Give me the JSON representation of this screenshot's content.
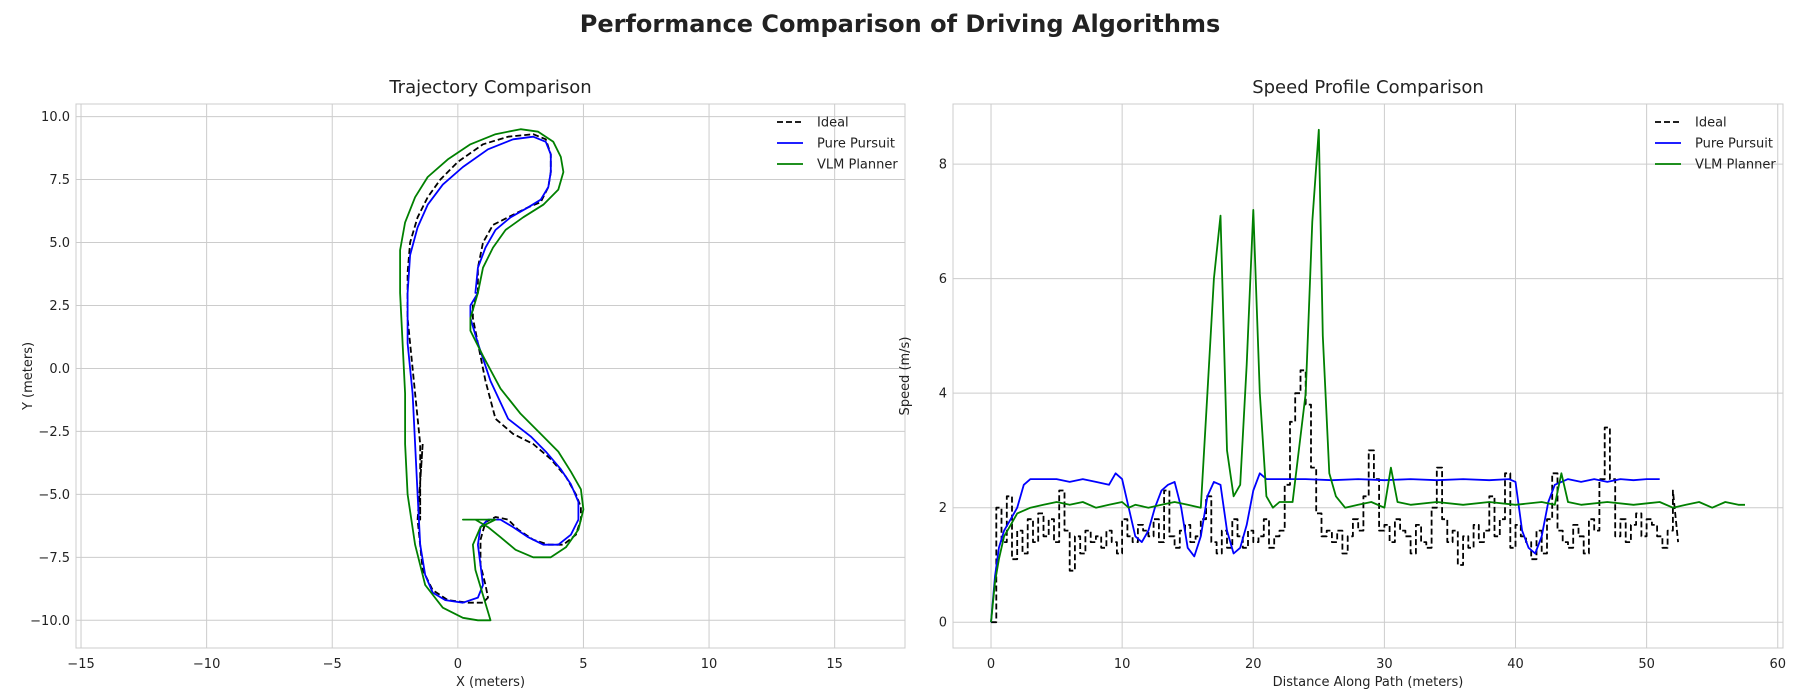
{
  "figure_title": "Performance Comparison of Driving Algorithms",
  "chart_data": [
    {
      "type": "line",
      "title": "Trajectory Comparison",
      "xlabel": "X (meters)",
      "ylabel": "Y (meters)",
      "xlim": [
        -15.2,
        17.8
      ],
      "ylim": [
        -11.1,
        10.5
      ],
      "xticks": [
        -15,
        -10,
        -5,
        0,
        5,
        10,
        15
      ],
      "yticks": [
        -10.0,
        -7.5,
        -5.0,
        -2.5,
        0.0,
        2.5,
        5.0,
        7.5,
        10.0
      ],
      "ytick_labels": [
        "−10.0",
        "−7.5",
        "−5.0",
        "−2.5",
        "0.0",
        "2.5",
        "5.0",
        "7.5",
        "10.0"
      ],
      "xtick_labels": [
        "−15",
        "−10",
        "−5",
        "0",
        "5",
        "10",
        "15"
      ],
      "grid": true,
      "legend": "top-right",
      "series": [
        {
          "name": "Ideal",
          "color": "#000000",
          "dash": "dashed",
          "x": [
            -1.4,
            -1.5,
            -1.5,
            -1.5,
            -1.8,
            -2.0,
            -2.0,
            -1.9,
            -1.6,
            -1.2,
            -0.7,
            0.0,
            1.0,
            2.0,
            3.0,
            3.5,
            3.7,
            3.7,
            3.6,
            3.3,
            2.8,
            2.0,
            1.4,
            1.0,
            0.8,
            0.8,
            0.6,
            0.6,
            0.8,
            1.1,
            1.5,
            2.2,
            3.0,
            3.7,
            4.3,
            4.7,
            4.9,
            4.9,
            4.7,
            4.2,
            3.6,
            3.0,
            2.4,
            2.0,
            1.5,
            1.1,
            0.9,
            0.9,
            1.1,
            1.2,
            1.0,
            0.4,
            -0.4,
            -1.0,
            -1.4,
            -1.6,
            -1.5,
            -1.4
          ],
          "y": [
            -3.0,
            -4.5,
            -6.0,
            -3.0,
            0.0,
            2.0,
            3.8,
            5.0,
            6.0,
            6.8,
            7.5,
            8.2,
            8.9,
            9.2,
            9.3,
            9.1,
            8.5,
            7.8,
            7.2,
            6.6,
            6.4,
            6.0,
            5.7,
            5.0,
            4.0,
            3.0,
            2.5,
            2.0,
            1.0,
            -0.5,
            -2.0,
            -2.6,
            -3.0,
            -3.6,
            -4.3,
            -5.0,
            -5.5,
            -6.0,
            -6.6,
            -7.0,
            -7.0,
            -6.8,
            -6.4,
            -6.0,
            -5.9,
            -6.1,
            -6.8,
            -7.8,
            -8.6,
            -9.1,
            -9.3,
            -9.3,
            -9.2,
            -8.8,
            -8.0,
            -6.0,
            -4.5,
            -3.0
          ]
        },
        {
          "name": "Pure Pursuit",
          "color": "#0000ff",
          "dash": "solid",
          "x": [
            0.8,
            0.5,
            0.5,
            0.8,
            1.3,
            2.0,
            2.9,
            3.5,
            4.1,
            4.5,
            4.8,
            4.8,
            4.5,
            4.0,
            3.4,
            2.8,
            2.2,
            1.7,
            1.2,
            0.9,
            0.8,
            0.9,
            1.0,
            0.8,
            0.2,
            -0.5,
            -1.0,
            -1.3,
            -1.5,
            -1.6,
            -1.7,
            -1.8,
            -2.0,
            -2.0,
            -1.9,
            -1.6,
            -1.2,
            -0.6,
            0.2,
            1.2,
            2.2,
            3.0,
            3.5,
            3.7,
            3.7,
            3.6,
            3.3,
            2.8,
            2.1,
            1.5,
            1.1,
            0.8,
            0.7,
            0.8
          ],
          "y": [
            3.0,
            2.5,
            2.0,
            1.0,
            -0.5,
            -2.0,
            -2.7,
            -3.3,
            -4.0,
            -4.6,
            -5.3,
            -6.0,
            -6.6,
            -7.0,
            -7.0,
            -6.7,
            -6.3,
            -6.0,
            -6.0,
            -6.3,
            -7.0,
            -7.8,
            -8.6,
            -9.1,
            -9.3,
            -9.2,
            -8.9,
            -8.2,
            -7.0,
            -5.0,
            -3.0,
            -1.0,
            1.0,
            3.0,
            4.5,
            5.6,
            6.5,
            7.3,
            8.0,
            8.7,
            9.1,
            9.2,
            9.0,
            8.5,
            7.8,
            7.2,
            6.7,
            6.4,
            6.0,
            5.5,
            4.8,
            4.0,
            3.0,
            3.0
          ]
        },
        {
          "name": "VLM Planner",
          "color": "#008000",
          "dash": "solid",
          "x": [
            0.8,
            0.5,
            0.5,
            1.0,
            1.7,
            2.5,
            3.3,
            4.0,
            4.5,
            4.9,
            5.0,
            4.8,
            4.3,
            3.7,
            3.0,
            2.3,
            1.7,
            1.2,
            0.7,
            0.2,
            1.5,
            0.9,
            0.6,
            0.7,
            1.0,
            1.3,
            0.8,
            0.2,
            -0.6,
            -1.3,
            -1.7,
            -2.0,
            -2.1,
            -2.1,
            -2.2,
            -2.3,
            -2.3,
            -2.1,
            -1.7,
            -1.2,
            -0.4,
            0.5,
            1.5,
            2.5,
            3.2,
            3.8,
            4.1,
            4.2,
            4.0,
            3.4,
            2.6,
            1.9,
            1.4,
            1.0,
            0.8
          ],
          "y": [
            3.0,
            2.0,
            1.5,
            0.5,
            -0.8,
            -1.8,
            -2.6,
            -3.3,
            -4.1,
            -4.8,
            -5.6,
            -6.4,
            -7.1,
            -7.5,
            -7.5,
            -7.2,
            -6.7,
            -6.3,
            -6.0,
            -6.0,
            -6.0,
            -6.3,
            -7.0,
            -8.0,
            -9.0,
            -10.0,
            -10.0,
            -9.9,
            -9.5,
            -8.6,
            -7.0,
            -5.0,
            -3.0,
            -1.0,
            1.0,
            3.0,
            4.7,
            5.8,
            6.8,
            7.6,
            8.3,
            8.9,
            9.3,
            9.5,
            9.4,
            9.0,
            8.4,
            7.8,
            7.1,
            6.5,
            6.0,
            5.5,
            4.8,
            4.0,
            3.0
          ]
        }
      ]
    },
    {
      "type": "line",
      "title": "Speed Profile Comparison",
      "xlabel": "Distance Along Path (meters)",
      "ylabel": "Speed (m/s)",
      "xlim": [
        -2.9,
        60.4
      ],
      "ylim": [
        -0.45,
        9.05
      ],
      "xticks": [
        0,
        10,
        20,
        30,
        40,
        50,
        60
      ],
      "xtick_labels": [
        "0",
        "10",
        "20",
        "30",
        "40",
        "50",
        "60"
      ],
      "yticks": [
        0,
        2,
        4,
        6,
        8
      ],
      "ytick_labels": [
        "0",
        "2",
        "4",
        "6",
        "8"
      ],
      "grid": true,
      "legend": "top-right",
      "series": [
        {
          "name": "Ideal",
          "color": "#000000",
          "dash": "dashed",
          "x": [
            0,
            0.4,
            0.8,
            1.2,
            1.6,
            2.0,
            2.4,
            2.8,
            3.2,
            3.6,
            4.0,
            4.4,
            4.8,
            5.2,
            5.6,
            6.0,
            6.4,
            6.8,
            7.2,
            7.6,
            8.0,
            8.4,
            8.8,
            9.2,
            9.6,
            10.0,
            10.4,
            10.8,
            11.2,
            11.6,
            12.0,
            12.4,
            12.8,
            13.2,
            13.6,
            14.0,
            14.4,
            14.8,
            15.2,
            15.6,
            16.0,
            16.4,
            16.8,
            17.2,
            17.6,
            18.0,
            18.4,
            18.8,
            19.2,
            19.6,
            20.0,
            20.4,
            20.8,
            21.2,
            21.6,
            22.0,
            22.4,
            22.8,
            23.2,
            23.6,
            24.0,
            24.4,
            24.8,
            25.2,
            25.6,
            26.0,
            26.4,
            26.8,
            27.2,
            27.6,
            28.0,
            28.4,
            28.8,
            29.2,
            29.6,
            30.0,
            30.4,
            30.8,
            31.2,
            31.6,
            32.0,
            32.4,
            32.8,
            33.2,
            33.6,
            34.0,
            34.4,
            34.8,
            35.2,
            35.6,
            36.0,
            36.4,
            36.8,
            37.2,
            37.6,
            38.0,
            38.4,
            38.8,
            39.2,
            39.6,
            40.0,
            40.4,
            40.8,
            41.2,
            41.6,
            42.0,
            42.4,
            42.8,
            43.2,
            43.6,
            44.0,
            44.4,
            44.8,
            45.2,
            45.6,
            46.0,
            46.4,
            46.8,
            47.2,
            47.6,
            48.0,
            48.4,
            48.8,
            49.2,
            49.6,
            50.0,
            50.4,
            50.8,
            51.2,
            51.6,
            52.0,
            52.4
          ],
          "y": [
            0.0,
            2.0,
            1.4,
            2.2,
            1.1,
            1.6,
            1.2,
            1.8,
            1.4,
            1.9,
            1.5,
            1.8,
            1.4,
            2.3,
            1.6,
            0.9,
            1.5,
            1.2,
            1.6,
            1.4,
            1.5,
            1.3,
            1.6,
            1.4,
            1.2,
            1.8,
            1.5,
            1.4,
            1.7,
            1.6,
            1.5,
            1.8,
            1.4,
            2.3,
            1.5,
            1.3,
            1.6,
            1.7,
            1.4,
            1.5,
            1.8,
            2.2,
            1.4,
            1.2,
            1.6,
            1.3,
            1.8,
            1.5,
            1.3,
            1.6,
            1.4,
            1.5,
            1.8,
            1.3,
            1.5,
            1.6,
            2.4,
            3.5,
            4.0,
            4.4,
            3.8,
            2.7,
            1.9,
            1.5,
            1.6,
            1.4,
            1.6,
            1.2,
            1.5,
            1.8,
            1.6,
            2.2,
            3.0,
            2.5,
            1.6,
            1.7,
            1.4,
            1.8,
            1.6,
            1.5,
            1.2,
            1.7,
            1.4,
            1.3,
            2.0,
            2.7,
            1.8,
            1.4,
            1.6,
            1.0,
            1.5,
            1.3,
            1.7,
            1.4,
            1.6,
            2.2,
            1.5,
            1.8,
            2.6,
            1.3,
            1.7,
            1.5,
            1.4,
            1.1,
            1.6,
            1.2,
            1.8,
            2.6,
            1.6,
            1.4,
            1.3,
            1.7,
            1.5,
            1.2,
            1.8,
            1.6,
            2.5,
            3.4,
            2.5,
            1.5,
            1.8,
            1.4,
            1.7,
            1.9,
            1.5,
            1.8,
            1.7,
            1.5,
            1.3,
            1.6,
            2.3,
            1.4
          ],
          "jagged": true
        },
        {
          "name": "Pure Pursuit",
          "color": "#0000ff",
          "dash": "solid",
          "x": [
            0,
            0.3,
            0.6,
            1.0,
            1.5,
            2.0,
            2.5,
            3.0,
            4.0,
            5.0,
            6.0,
            7.0,
            8.0,
            9.0,
            9.5,
            10.0,
            10.5,
            11.0,
            11.5,
            12.0,
            12.5,
            13.0,
            13.5,
            14.0,
            14.5,
            15.0,
            15.5,
            16.0,
            16.5,
            17.0,
            17.5,
            18.0,
            18.5,
            19.0,
            19.5,
            20.0,
            20.5,
            21.0,
            22.0,
            24.0,
            26.0,
            28.0,
            30.0,
            32.0,
            34.0,
            36.0,
            38.0,
            39.5,
            40.0,
            40.5,
            41.0,
            41.5,
            42.0,
            42.5,
            43.0,
            44.0,
            45.0,
            46.0,
            47.0,
            48.0,
            49.0,
            50.0,
            51.0
          ],
          "y": [
            0.0,
            0.8,
            1.3,
            1.6,
            1.8,
            2.0,
            2.4,
            2.5,
            2.5,
            2.5,
            2.45,
            2.5,
            2.45,
            2.4,
            2.6,
            2.5,
            2.0,
            1.5,
            1.4,
            1.6,
            2.0,
            2.3,
            2.4,
            2.45,
            2.0,
            1.3,
            1.15,
            1.5,
            2.2,
            2.45,
            2.4,
            1.6,
            1.2,
            1.3,
            1.7,
            2.3,
            2.6,
            2.5,
            2.5,
            2.5,
            2.48,
            2.5,
            2.48,
            2.5,
            2.48,
            2.5,
            2.48,
            2.5,
            2.45,
            1.6,
            1.3,
            1.2,
            1.5,
            2.1,
            2.4,
            2.5,
            2.45,
            2.5,
            2.45,
            2.5,
            2.48,
            2.5,
            2.5
          ]
        },
        {
          "name": "VLM Planner",
          "color": "#008000",
          "dash": "solid",
          "x": [
            0,
            0.3,
            0.6,
            1.0,
            1.5,
            2.0,
            3.0,
            4.0,
            5.0,
            6.0,
            7.0,
            8.0,
            9.0,
            10.0,
            10.5,
            11.0,
            12.0,
            13.0,
            14.0,
            15.0,
            16.0,
            16.5,
            17.0,
            17.5,
            18.0,
            18.5,
            19.0,
            19.5,
            20.0,
            20.5,
            21.0,
            21.5,
            22.0,
            23.0,
            24.0,
            24.5,
            25.0,
            25.3,
            25.8,
            26.3,
            27.0,
            28.0,
            29.0,
            30.0,
            30.5,
            31.0,
            32.0,
            34.0,
            36.0,
            38.0,
            40.0,
            42.0,
            43.0,
            43.5,
            44.0,
            45.0,
            47.0,
            49.0,
            51.0,
            52.0,
            53.0,
            54.0,
            55.0,
            56.0,
            57.0,
            57.5
          ],
          "y": [
            0.0,
            0.7,
            1.1,
            1.5,
            1.7,
            1.9,
            2.0,
            2.05,
            2.1,
            2.05,
            2.1,
            2.0,
            2.05,
            2.1,
            2.0,
            2.05,
            2.0,
            2.05,
            2.1,
            2.05,
            2.0,
            4.0,
            6.0,
            7.1,
            3.0,
            2.2,
            2.4,
            4.5,
            7.2,
            4.0,
            2.2,
            2.0,
            2.1,
            2.1,
            4.0,
            7.0,
            8.6,
            5.0,
            2.6,
            2.2,
            2.0,
            2.05,
            2.1,
            2.0,
            2.7,
            2.1,
            2.05,
            2.1,
            2.05,
            2.1,
            2.05,
            2.1,
            2.05,
            2.6,
            2.1,
            2.05,
            2.1,
            2.05,
            2.1,
            2.0,
            2.05,
            2.1,
            2.0,
            2.1,
            2.05,
            2.05
          ]
        }
      ]
    }
  ]
}
